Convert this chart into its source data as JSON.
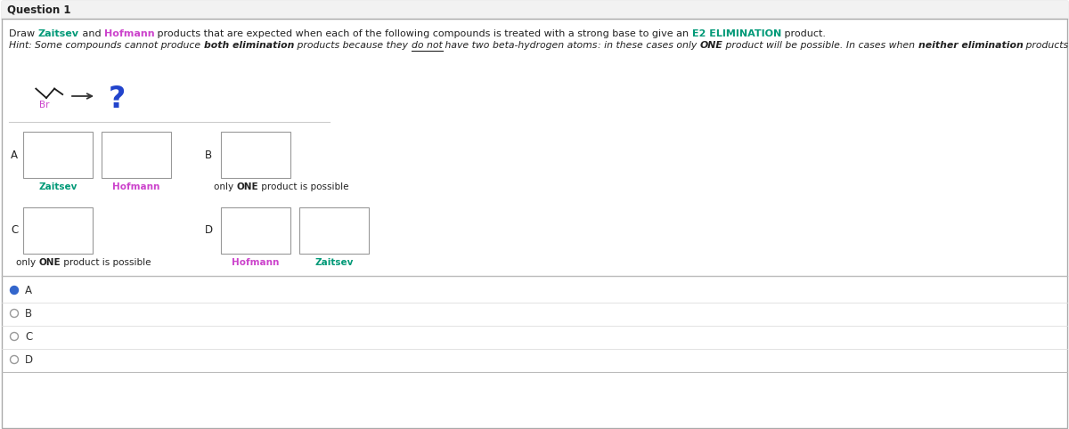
{
  "title": "Question 1",
  "bg_color": "#ffffff",
  "header_bg": "#f2f2f2",
  "border_color": "#bbbbbb",
  "zaitsev_color": "#009977",
  "hofmann_color": "#cc44cc",
  "e2_color": "#009977",
  "radio_selected_color": "#3366cc",
  "box_color": "#999999",
  "radio_options": [
    "A",
    "B",
    "C",
    "D"
  ],
  "selected_option": 0
}
